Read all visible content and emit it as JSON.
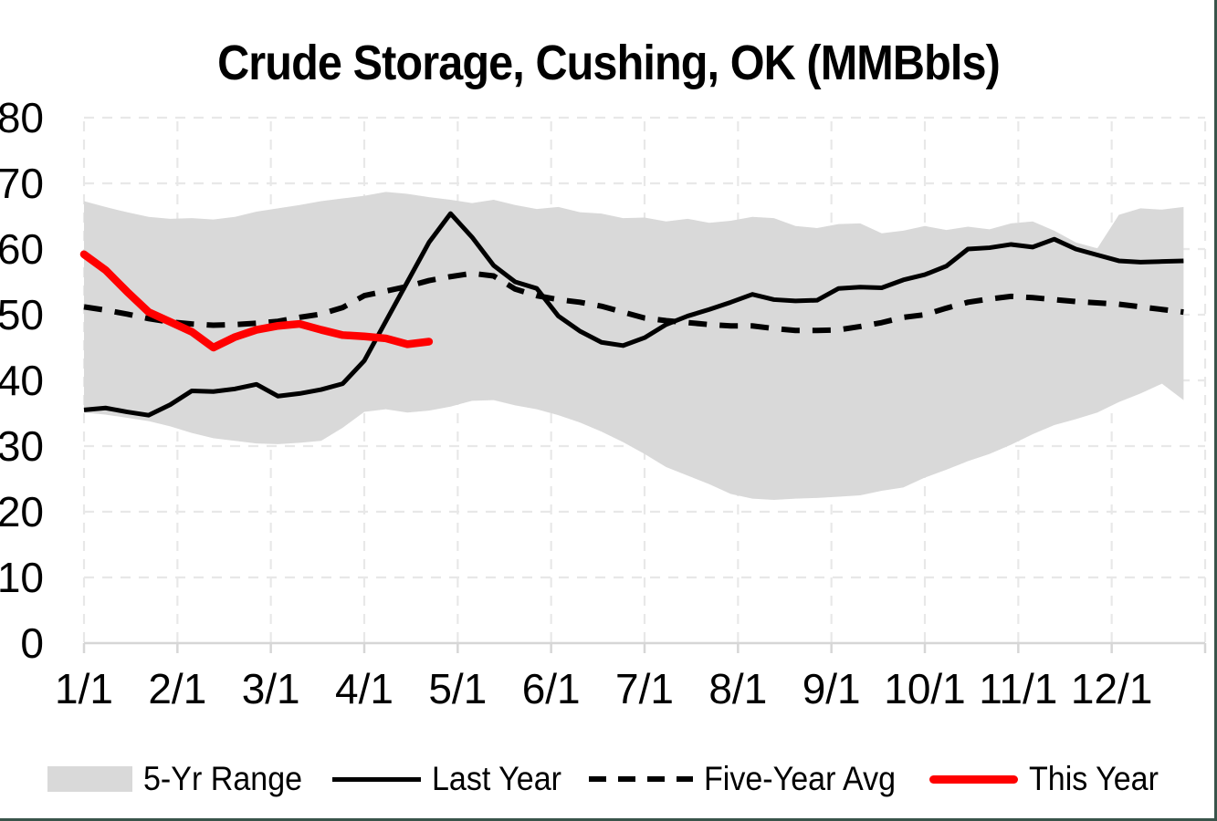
{
  "title": "Crude Storage, Cushing, OK (MMBbls)",
  "legend": [
    {
      "label": "5-Yr Range",
      "swatch": "band"
    },
    {
      "label": "Last Year",
      "swatch": "solid-line"
    },
    {
      "label": "Five-Year Avg",
      "swatch": "dashed-line"
    },
    {
      "label": "This Year",
      "swatch": "thick-red-line"
    }
  ],
  "colors": {
    "band": "#D9D9D9",
    "black_line": "#000000",
    "this_year_line": "#FF0000",
    "gridline": "#E8E8E8",
    "axis_line": "#D6D6D6",
    "page_border": "#39544A"
  },
  "chart_data": {
    "type": "line",
    "title": "Crude Storage, Cushing, OK (MMBbls)",
    "unit": "MMBbls",
    "x_resolution": "weekly, 52 points spanning Jan 1 - Dec 31",
    "x_tick_labels": [
      "1/1",
      "2/1",
      "3/1",
      "4/1",
      "5/1",
      "6/1",
      "7/1",
      "8/1",
      "9/1",
      "10/1",
      "11/1",
      "12/1"
    ],
    "y_ticks": [
      0,
      10,
      20,
      30,
      40,
      50,
      60,
      70,
      80
    ],
    "ylim": [
      0,
      80
    ],
    "grid": "dashed light gray, horizontal and vertical",
    "legend_position": "bottom",
    "series": [
      {
        "name": "5-Yr Range",
        "type": "band",
        "upper": [
          67.3,
          66.4,
          65.6,
          64.9,
          64.6,
          64.7,
          64.5,
          64.9,
          65.7,
          66.2,
          66.7,
          67.3,
          67.7,
          68.1,
          68.7,
          68.4,
          67.9,
          67.5,
          67.0,
          67.5,
          66.7,
          66.1,
          66.4,
          65.6,
          65.4,
          64.7,
          64.8,
          64.2,
          64.6,
          64.0,
          64.3,
          64.9,
          64.7,
          63.5,
          63.2,
          63.8,
          63.9,
          62.4,
          62.8,
          63.5,
          62.9,
          63.4,
          63.0,
          63.9,
          64.2,
          62.8,
          61.0,
          60.1,
          65.2,
          66.2,
          66.0,
          66.4
        ],
        "lower": [
          35.1,
          34.8,
          34.3,
          33.8,
          33.0,
          32.0,
          31.2,
          30.8,
          30.4,
          30.3,
          30.5,
          30.8,
          32.8,
          35.2,
          35.6,
          35.1,
          35.4,
          36.0,
          36.9,
          37.0,
          36.2,
          35.6,
          34.7,
          33.6,
          32.2,
          30.6,
          28.8,
          26.8,
          25.5,
          24.2,
          22.7,
          22.0,
          21.8,
          22.0,
          22.1,
          22.3,
          22.5,
          23.2,
          23.7,
          25.2,
          26.4,
          27.7,
          28.8,
          30.2,
          31.8,
          33.2,
          34.1,
          35.1,
          36.7,
          38.0,
          39.5,
          37.0
        ]
      },
      {
        "name": "Last Year",
        "type": "line",
        "style": "solid",
        "values": [
          35.5,
          35.8,
          35.2,
          34.7,
          36.3,
          38.4,
          38.3,
          38.7,
          39.4,
          37.6,
          38.0,
          38.6,
          39.5,
          43.0,
          49.0,
          55.0,
          61.0,
          65.4,
          61.8,
          57.5,
          55.0,
          54.0,
          49.8,
          47.5,
          45.8,
          45.3,
          46.5,
          48.5,
          49.8,
          50.8,
          51.9,
          53.1,
          52.3,
          52.1,
          52.2,
          54.0,
          54.2,
          54.1,
          55.3,
          56.1,
          57.4,
          60.0,
          60.2,
          60.7,
          60.3,
          61.5,
          60.0,
          59.1,
          58.2,
          58.0,
          58.1,
          58.2
        ]
      },
      {
        "name": "Five-Year Avg",
        "type": "line",
        "style": "dashed",
        "values": [
          51.2,
          50.7,
          50.1,
          49.4,
          48.9,
          48.6,
          48.4,
          48.5,
          48.7,
          49.0,
          49.6,
          50.1,
          51.1,
          52.9,
          53.6,
          54.3,
          55.2,
          55.8,
          56.3,
          55.9,
          53.9,
          52.9,
          52.3,
          51.9,
          51.3,
          50.4,
          49.5,
          49.1,
          48.8,
          48.5,
          48.3,
          48.3,
          47.9,
          47.6,
          47.6,
          47.7,
          48.2,
          48.8,
          49.6,
          50.0,
          51.0,
          51.9,
          52.4,
          52.8,
          52.6,
          52.3,
          52.0,
          51.8,
          51.6,
          51.2,
          50.8,
          50.4
        ]
      },
      {
        "name": "This Year",
        "type": "line",
        "style": "solid-thick",
        "values": [
          59.2,
          56.8,
          53.5,
          50.4,
          48.9,
          47.4,
          45.0,
          46.6,
          47.7,
          48.3,
          48.6,
          47.7,
          46.9,
          46.7,
          46.4,
          45.5,
          45.9
        ]
      }
    ]
  }
}
